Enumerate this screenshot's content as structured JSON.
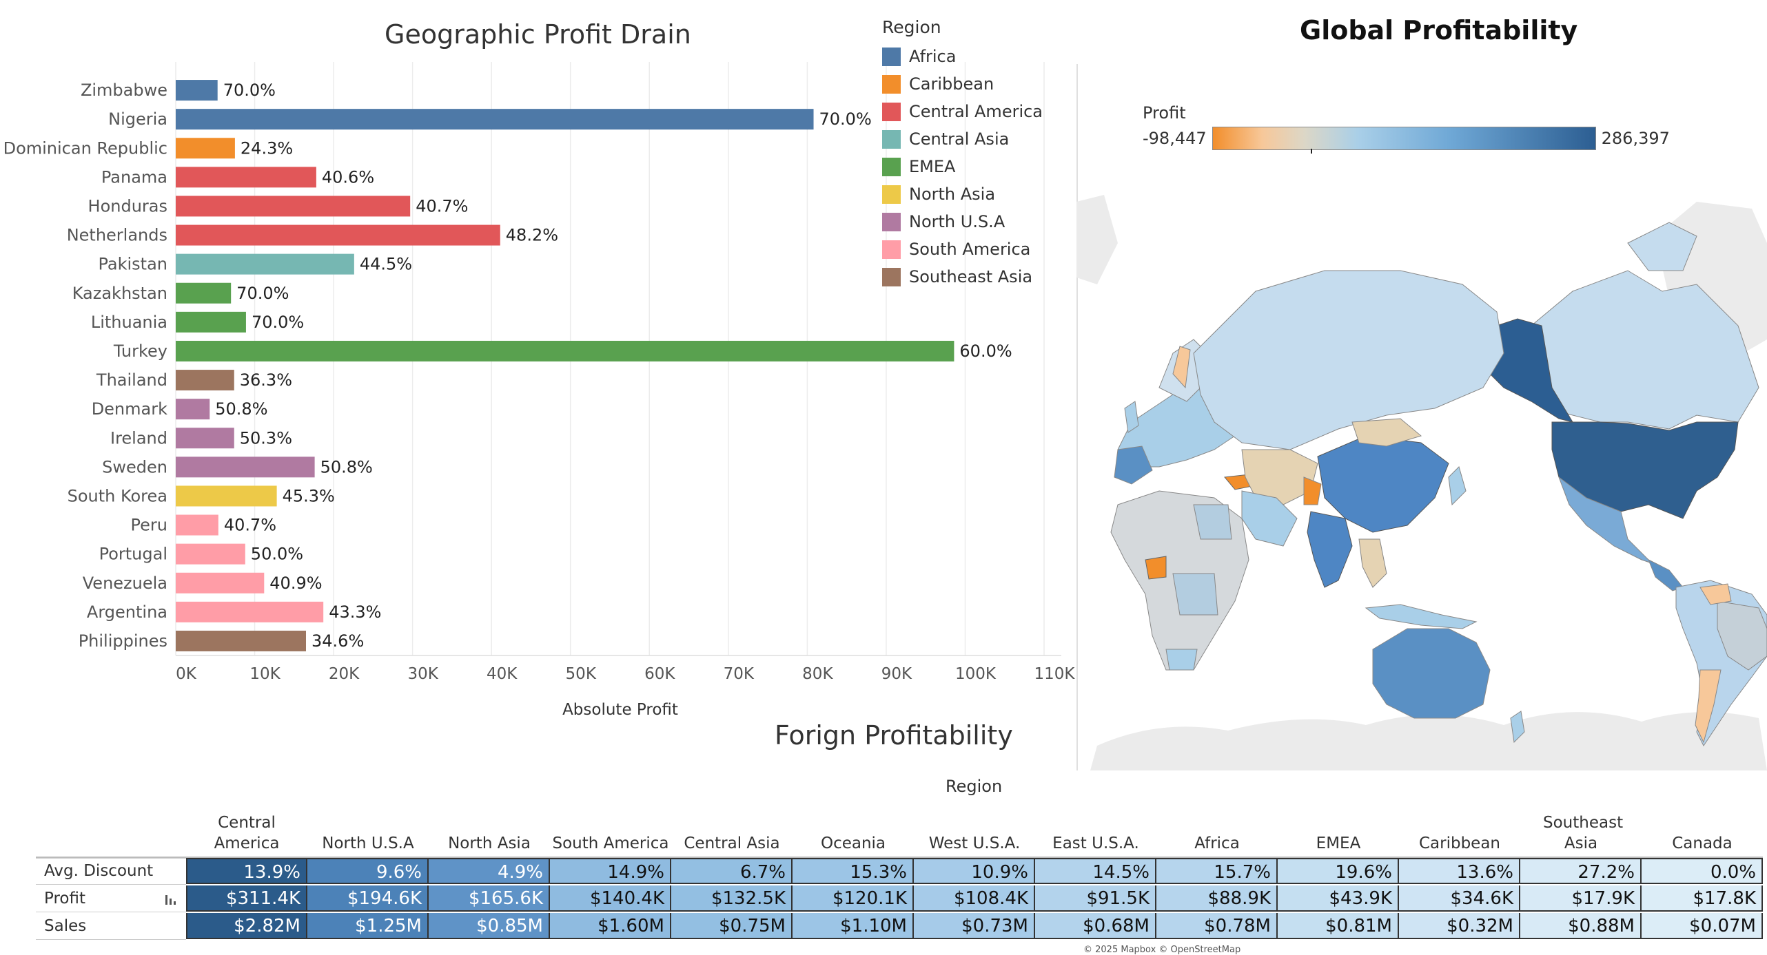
{
  "bar_panel": {
    "title": "Geographic Profit Drain"
  },
  "legend": {
    "title": "Region",
    "items": [
      {
        "label": "Africa",
        "color": "#4e79a7"
      },
      {
        "label": "Caribbean",
        "color": "#f28e2b"
      },
      {
        "label": "Central America",
        "color": "#e15759"
      },
      {
        "label": "Central Asia",
        "color": "#76b7b2"
      },
      {
        "label": "EMEA",
        "color": "#59a14f"
      },
      {
        "label": "North Asia",
        "color": "#edc948"
      },
      {
        "label": "North U.S.A",
        "color": "#b07aa1"
      },
      {
        "label": "South America",
        "color": "#ff9da7"
      },
      {
        "label": "Southeast Asia",
        "color": "#9c755f"
      }
    ]
  },
  "chart_data": {
    "type": "bar",
    "orientation": "horizontal",
    "title": "Geographic Profit Drain",
    "xlabel": "Absolute Profit",
    "ylabel": "",
    "xlim": [
      0,
      110000
    ],
    "x_ticks": [
      "0K",
      "10K",
      "20K",
      "30K",
      "40K",
      "50K",
      "60K",
      "70K",
      "80K",
      "90K",
      "100K",
      "110K"
    ],
    "grid": true,
    "legend_position": "top-right",
    "categories": [
      "Zimbabwe",
      "Nigeria",
      "Dominican Republic",
      "Panama",
      "Honduras",
      "Netherlands",
      "Pakistan",
      "Kazakhstan",
      "Lithuania",
      "Turkey",
      "Thailand",
      "Denmark",
      "Ireland",
      "Sweden",
      "South Korea",
      "Peru",
      "Portugal",
      "Venezuela",
      "Argentina",
      "Philippines"
    ],
    "values": [
      5300,
      80800,
      7500,
      17800,
      29700,
      41100,
      22600,
      7000,
      8900,
      98600,
      7400,
      4300,
      7400,
      17600,
      12800,
      5400,
      8800,
      11200,
      18700,
      16500
    ],
    "regions": [
      "Africa",
      "Africa",
      "Caribbean",
      "Central America",
      "Central America",
      "Central America",
      "Central Asia",
      "EMEA",
      "EMEA",
      "EMEA",
      "Southeast Asia",
      "North U.S.A",
      "North U.S.A",
      "North U.S.A",
      "North Asia",
      "South America",
      "South America",
      "South America",
      "South America",
      "Southeast Asia"
    ],
    "labels": [
      "70.0%",
      "70.0%",
      "24.3%",
      "40.6%",
      "40.7%",
      "48.2%",
      "44.5%",
      "70.0%",
      "70.0%",
      "60.0%",
      "36.3%",
      "50.8%",
      "50.3%",
      "50.8%",
      "45.3%",
      "40.7%",
      "50.0%",
      "40.9%",
      "43.3%",
      "34.6%"
    ]
  },
  "map_panel": {
    "title": "Global Profitability",
    "colorbar": {
      "title": "Profit",
      "min_label": "-98,447",
      "max_label": "286,397"
    },
    "attribution": "© 2025 Mapbox © OpenStreetMap"
  },
  "table_panel": {
    "title": "Forign Profitability",
    "column_group_label": "Region",
    "columns": [
      "Central America",
      "North U.S.A",
      "North Asia",
      "South America",
      "Central Asia",
      "Oceania",
      "West U.S.A.",
      "East U.S.A.",
      "Africa",
      "EMEA",
      "Caribbean",
      "Southeast Asia",
      "Canada"
    ],
    "rows": [
      {
        "label": "Avg. Discount",
        "values": [
          "13.9%",
          "9.6%",
          "4.9%",
          "14.9%",
          "6.7%",
          "15.3%",
          "10.9%",
          "14.5%",
          "15.7%",
          "19.6%",
          "13.6%",
          "27.2%",
          "0.0%"
        ]
      },
      {
        "label": "Profit",
        "values": [
          "$311.4K",
          "$194.6K",
          "$165.6K",
          "$140.4K",
          "$132.5K",
          "$120.1K",
          "$108.4K",
          "$91.5K",
          "$88.9K",
          "$43.9K",
          "$34.6K",
          "$17.9K",
          "$17.8K"
        ]
      },
      {
        "label": "Sales",
        "values": [
          "$2.82M",
          "$1.25M",
          "$0.85M",
          "$1.60M",
          "$0.75M",
          "$1.10M",
          "$0.73M",
          "$0.68M",
          "$0.78M",
          "$0.81M",
          "$0.32M",
          "$0.88M",
          "$0.07M"
        ]
      }
    ],
    "column_colors": [
      "#2b5b8a",
      "#4c82b8",
      "#5f93c7",
      "#8fbbe0",
      "#93bfe2",
      "#9cc5e6",
      "#a6cbe9",
      "#b3d3ec",
      "#b6d5ed",
      "#c5dff1",
      "#cfe4f4",
      "#d8eaf6",
      "#dcedf7"
    ],
    "dark_text_columns_from": 3
  }
}
